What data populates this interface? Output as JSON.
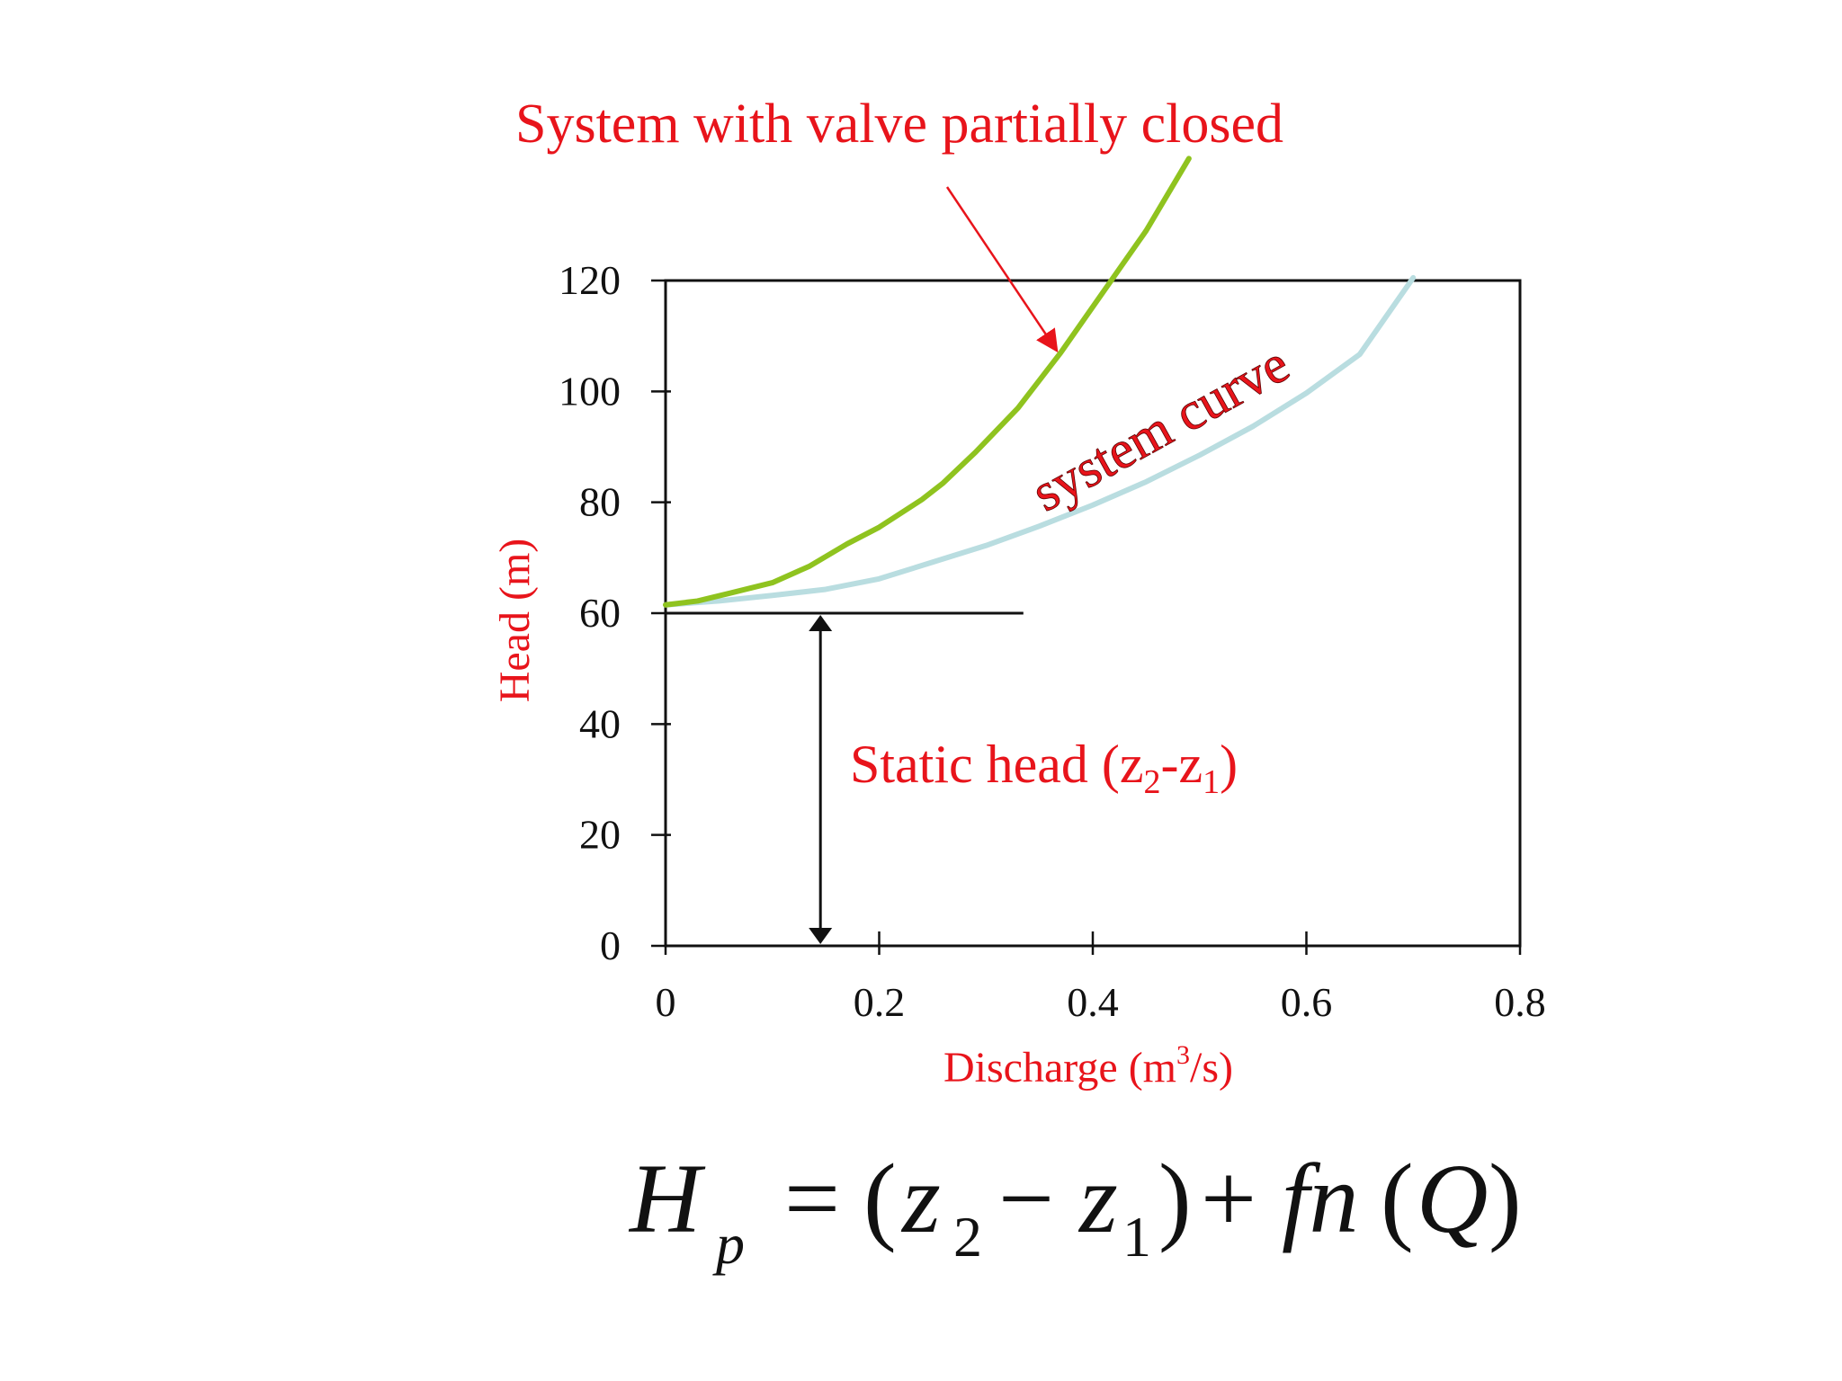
{
  "colors": {
    "annotation": "#e8141b",
    "valve_curve": "#8fc31f",
    "system_curve": "#b9dde0",
    "axis": "#111111"
  },
  "chart_data": {
    "type": "line",
    "xlabel_main": "Discharge (m",
    "xlabel_sup": "3",
    "xlabel_tail": "/s)",
    "ylabel": "Head (m)",
    "xlim": [
      0,
      0.8
    ],
    "ylim": [
      0,
      120
    ],
    "x_ticks": [
      "0",
      "0.2",
      "0.4",
      "0.6",
      "0.8"
    ],
    "y_ticks": [
      "0",
      "20",
      "40",
      "60",
      "80",
      "100",
      "120"
    ],
    "grid": false,
    "series": [
      {
        "key": "valve",
        "color": "#8fc31f",
        "x": [
          0,
          0.03,
          0.06,
          0.1,
          0.135,
          0.17,
          0.2,
          0.24,
          0.26,
          0.29,
          0.33,
          0.37,
          0.41,
          0.45,
          0.49
        ],
        "y": [
          61.5,
          62.2,
          63.6,
          65.5,
          68.5,
          72.5,
          75.5,
          80.5,
          83.5,
          89,
          97,
          107,
          118,
          129,
          142
        ]
      },
      {
        "key": "system",
        "color": "#b9dde0",
        "x": [
          0,
          0.05,
          0.1,
          0.15,
          0.2,
          0.25,
          0.3,
          0.35,
          0.4,
          0.45,
          0.5,
          0.55,
          0.6,
          0.65,
          0.7
        ],
        "y": [
          61.5,
          62.2,
          63.2,
          64.3,
          66.2,
          69.2,
          72.2,
          75.7,
          79.5,
          83.7,
          88.5,
          93.7,
          99.7,
          106.7,
          120.5
        ]
      }
    ],
    "static_head": {
      "value": 60,
      "line_x_end": 0.335,
      "arrow_x": 0.145
    },
    "annotations": {
      "valve_title": "System with valve partially closed",
      "system_curve_label": "system curve",
      "static_head_text": "Static head (z",
      "static_head_sub2": "2",
      "static_head_mid": "-z",
      "static_head_sub1": "1",
      "static_head_close": ")"
    }
  },
  "formula": {
    "H": "H",
    "p": "p",
    "eq": "=",
    "open": "(",
    "z2": "z",
    "sub2": "2",
    "minus": "−",
    "z1": "z",
    "sub1": "1",
    "close": ")",
    "plus": "+",
    "fn": "fn",
    "Q_open": "(",
    "Q": "Q",
    "Q_close": ")"
  }
}
